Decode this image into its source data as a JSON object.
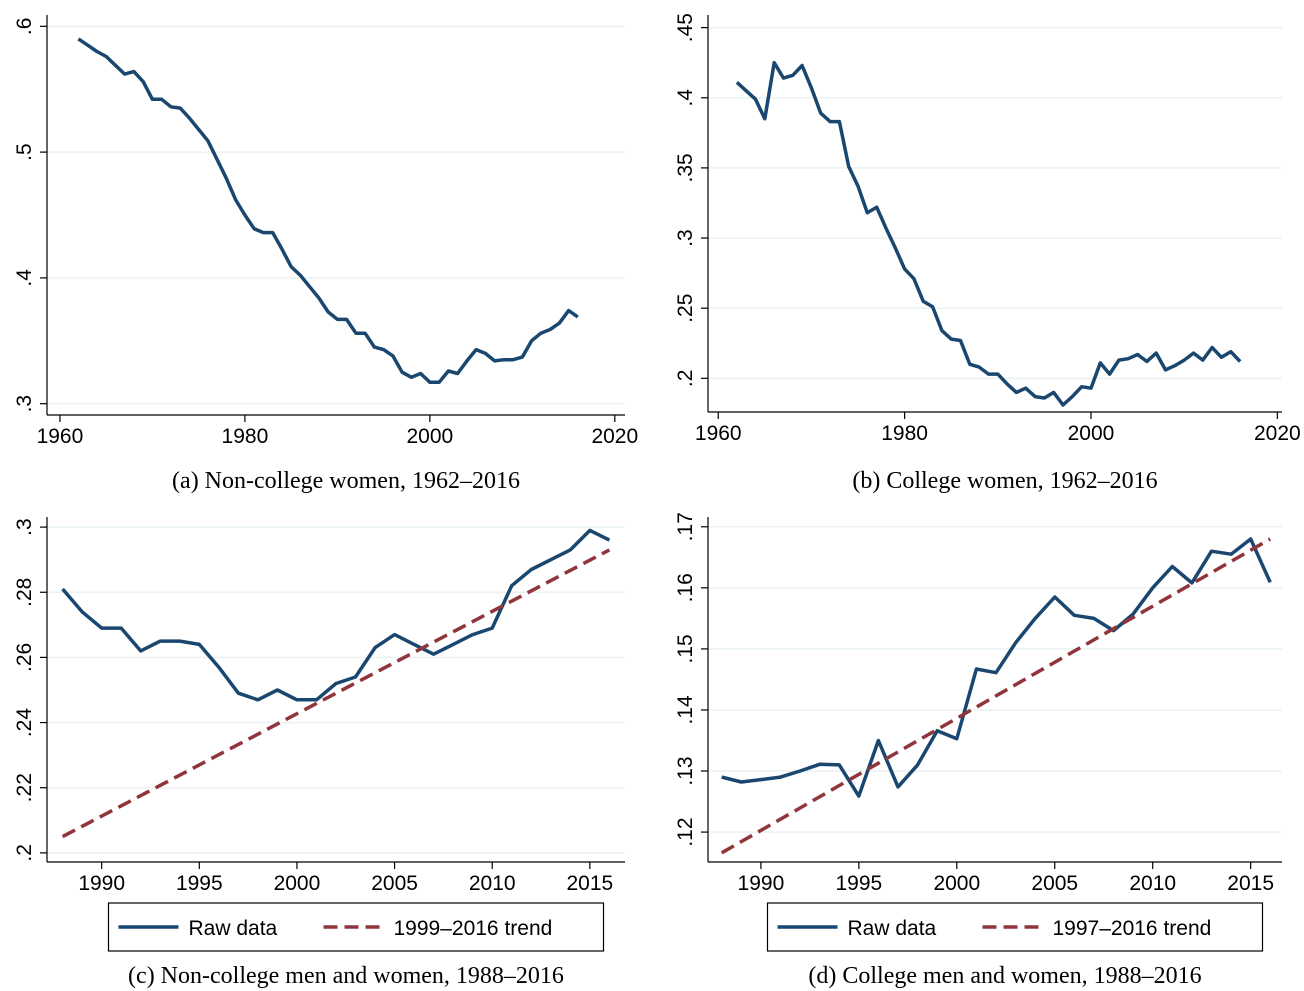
{
  "chart_data": [
    {
      "type": "line",
      "caption": "(a) Non-college women, 1962–2016",
      "x": [
        1962,
        1963,
        1964,
        1965,
        1966,
        1967,
        1968,
        1969,
        1970,
        1971,
        1972,
        1973,
        1974,
        1975,
        1976,
        1977,
        1978,
        1979,
        1980,
        1981,
        1982,
        1983,
        1984,
        1985,
        1986,
        1987,
        1988,
        1989,
        1990,
        1991,
        1992,
        1993,
        1994,
        1995,
        1996,
        1997,
        1998,
        1999,
        2000,
        2001,
        2002,
        2003,
        2004,
        2005,
        2006,
        2007,
        2008,
        2009,
        2010,
        2011,
        2012,
        2013,
        2014,
        2015,
        2016
      ],
      "series": [
        {
          "color": "#1a476f",
          "values": [
            0.59,
            0.585,
            0.58,
            0.576,
            0.569,
            0.562,
            0.564,
            0.556,
            0.542,
            0.542,
            0.536,
            0.535,
            0.527,
            0.518,
            0.509,
            0.494,
            0.479,
            0.462,
            0.45,
            0.439,
            0.436,
            0.436,
            0.423,
            0.409,
            0.402,
            0.393,
            0.384,
            0.373,
            0.367,
            0.367,
            0.356,
            0.356,
            0.345,
            0.343,
            0.338,
            0.325,
            0.321,
            0.324,
            0.317,
            0.317,
            0.326,
            0.324,
            0.334,
            0.343,
            0.34,
            0.334,
            0.335,
            0.335,
            0.337,
            0.35,
            0.356,
            0.359,
            0.364,
            0.374,
            0.369
          ]
        }
      ],
      "xlim": [
        1958.6,
        2021.1
      ],
      "ylim": [
        0.291,
        0.609
      ],
      "xticks": [
        1960,
        1980,
        2000,
        2020
      ],
      "yticks": [
        {
          "value": 0.3,
          "label": ".3"
        },
        {
          "value": 0.4,
          "label": ".4"
        },
        {
          "value": 0.5,
          "label": ".5"
        },
        {
          "value": 0.6,
          "label": ".6"
        }
      ],
      "grid": true
    },
    {
      "type": "line",
      "caption": "(b) College women, 1962–2016",
      "x": [
        1962,
        1963,
        1964,
        1965,
        1966,
        1967,
        1968,
        1969,
        1970,
        1971,
        1972,
        1973,
        1974,
        1975,
        1976,
        1977,
        1978,
        1979,
        1980,
        1981,
        1982,
        1983,
        1984,
        1985,
        1986,
        1987,
        1988,
        1989,
        1990,
        1991,
        1992,
        1993,
        1994,
        1995,
        1996,
        1997,
        1998,
        1999,
        2000,
        2001,
        2002,
        2003,
        2004,
        2005,
        2006,
        2007,
        2008,
        2009,
        2010,
        2011,
        2012,
        2013,
        2014,
        2015,
        2016
      ],
      "series": [
        {
          "color": "#1a476f",
          "values": [
            0.411,
            0.405,
            0.399,
            0.385,
            0.425,
            0.414,
            0.416,
            0.423,
            0.407,
            0.389,
            0.383,
            0.383,
            0.351,
            0.337,
            0.318,
            0.322,
            0.307,
            0.293,
            0.278,
            0.271,
            0.255,
            0.251,
            0.234,
            0.228,
            0.227,
            0.21,
            0.208,
            0.203,
            0.203,
            0.196,
            0.19,
            0.193,
            0.187,
            0.186,
            0.19,
            0.181,
            0.187,
            0.194,
            0.193,
            0.211,
            0.203,
            0.213,
            0.214,
            0.217,
            0.212,
            0.218,
            0.206,
            0.209,
            0.213,
            0.218,
            0.213,
            0.222,
            0.215,
            0.219,
            0.212
          ]
        }
      ],
      "xlim": [
        1958.9,
        2020.5
      ],
      "ylim": [
        0.176,
        0.459
      ],
      "xticks": [
        1960,
        1980,
        2000,
        2020
      ],
      "yticks": [
        {
          "value": 0.2,
          "label": ".2"
        },
        {
          "value": 0.25,
          "label": ".25"
        },
        {
          "value": 0.3,
          "label": ".3"
        },
        {
          "value": 0.35,
          "label": ".35"
        },
        {
          "value": 0.4,
          "label": ".4"
        },
        {
          "value": 0.45,
          "label": ".45"
        }
      ],
      "grid": true
    },
    {
      "type": "line",
      "caption": "(c) Non-college men and women, 1988–2016",
      "x": [
        1988,
        1989,
        1990,
        1991,
        1992,
        1993,
        1994,
        1995,
        1996,
        1997,
        1998,
        1999,
        2000,
        2001,
        2002,
        2003,
        2004,
        2005,
        2006,
        2007,
        2008,
        2009,
        2010,
        2011,
        2012,
        2013,
        2014,
        2015,
        2016
      ],
      "series": [
        {
          "name": "Raw data",
          "color": "#1a476f",
          "values": [
            0.281,
            0.274,
            0.269,
            0.269,
            0.262,
            0.265,
            0.265,
            0.264,
            0.257,
            0.249,
            0.247,
            0.25,
            0.247,
            0.247,
            0.252,
            0.254,
            0.263,
            0.267,
            0.264,
            0.261,
            0.264,
            0.267,
            0.269,
            0.282,
            0.287,
            0.29,
            0.293,
            0.299,
            0.296
          ]
        },
        {
          "name": "1999–2016 trend",
          "color": "#90353b",
          "style": "dashed",
          "x": [
            1988,
            2016
          ],
          "values": [
            0.205,
            0.293
          ]
        }
      ],
      "xlim": [
        1987.2,
        2016.8
      ],
      "ylim": [
        0.1972,
        0.3031
      ],
      "xticks": [
        1990,
        1995,
        2000,
        2005,
        2010,
        2015
      ],
      "yticks": [
        {
          "value": 0.2,
          "label": ".2"
        },
        {
          "value": 0.22,
          "label": ".22"
        },
        {
          "value": 0.24,
          "label": ".24"
        },
        {
          "value": 0.26,
          "label": ".26"
        },
        {
          "value": 0.28,
          "label": ".28"
        },
        {
          "value": 0.3,
          "label": ".3"
        }
      ],
      "grid": true,
      "legend": "bottom"
    },
    {
      "type": "line",
      "caption": "(d) College men and women, 1988–2016",
      "x": [
        1988,
        1989,
        1990,
        1991,
        1992,
        1993,
        1994,
        1995,
        1996,
        1997,
        1998,
        1999,
        2000,
        2001,
        2002,
        2003,
        2004,
        2005,
        2006,
        2007,
        2008,
        2009,
        2010,
        2011,
        2012,
        2013,
        2014,
        2015,
        2016
      ],
      "series": [
        {
          "name": "Raw data",
          "color": "#1a476f",
          "values": [
            0.129,
            0.1282,
            0.1286,
            0.129,
            0.13,
            0.1311,
            0.131,
            0.1259,
            0.135,
            0.1274,
            0.131,
            0.1366,
            0.1353,
            0.1467,
            0.1461,
            0.151,
            0.155,
            0.1585,
            0.1555,
            0.155,
            0.153,
            0.1557,
            0.16,
            0.1635,
            0.1608,
            0.166,
            0.1655,
            0.168,
            0.1609
          ]
        },
        {
          "name": "1997–2016 trend",
          "color": "#90353b",
          "style": "dashed",
          "x": [
            1988,
            2016
          ],
          "values": [
            0.1166,
            0.168
          ]
        }
      ],
      "xlim": [
        1987.3,
        2016.6
      ],
      "ylim": [
        0.1151,
        0.1716
      ],
      "xticks": [
        1990,
        1995,
        2000,
        2005,
        2010,
        2015
      ],
      "yticks": [
        {
          "value": 0.12,
          "label": ".12"
        },
        {
          "value": 0.13,
          "label": ".13"
        },
        {
          "value": 0.14,
          "label": ".14"
        },
        {
          "value": 0.15,
          "label": ".15"
        },
        {
          "value": 0.16,
          "label": ".16"
        },
        {
          "value": 0.17,
          "label": ".17"
        }
      ],
      "grid": true,
      "legend": "bottom"
    }
  ]
}
